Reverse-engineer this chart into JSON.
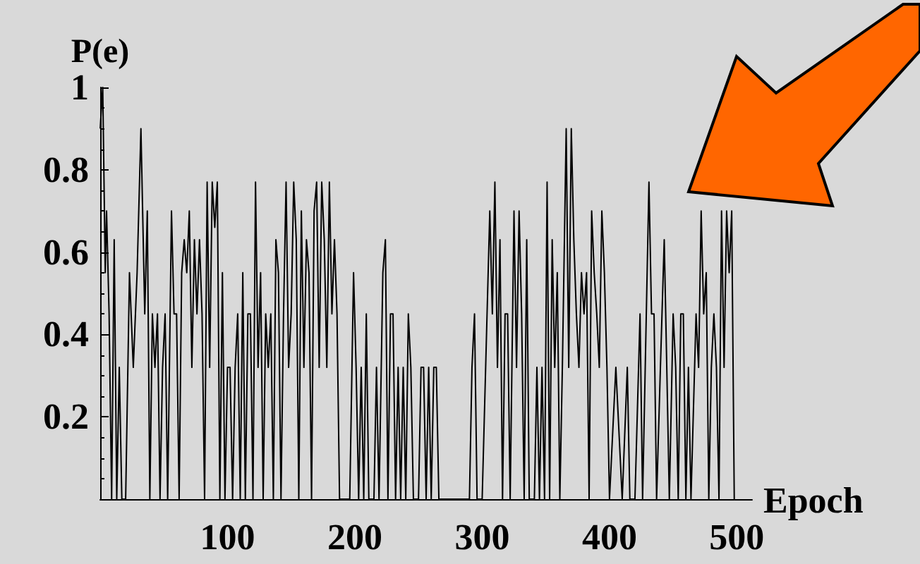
{
  "chart_data": {
    "type": "line",
    "xlabel": "Epoch",
    "ylabel": "P(e)",
    "xlim": [
      0,
      512
    ],
    "ylim": [
      0,
      1
    ],
    "xticks": [
      100,
      200,
      300,
      400,
      500
    ],
    "yticks": [
      0.2,
      0.4,
      0.6,
      0.8,
      1
    ],
    "grid": false,
    "marker": "none",
    "line_style": "solid",
    "series": [
      {
        "color": "#000000",
        "x": [
          0,
          2,
          4,
          5,
          7,
          9,
          11,
          13,
          15,
          17,
          20,
          23,
          26,
          29,
          32,
          35,
          37,
          39,
          41,
          43,
          45,
          47,
          49,
          51,
          53,
          56,
          58,
          60,
          62,
          64,
          66,
          68,
          70,
          72,
          74,
          76,
          78,
          80,
          82,
          84,
          86,
          88,
          90,
          92,
          94,
          96,
          98,
          100,
          102,
          104,
          106,
          108,
          110,
          112,
          114,
          116,
          118,
          120,
          122,
          124,
          126,
          128,
          130,
          132,
          134,
          136,
          138,
          140,
          142,
          144,
          146,
          148,
          150,
          152,
          154,
          156,
          158,
          160,
          162,
          164,
          166,
          168,
          170,
          172,
          174,
          176,
          178,
          180,
          182,
          184,
          186,
          188,
          192,
          196,
          199,
          201,
          203,
          205,
          207,
          209,
          211,
          215,
          217,
          219,
          222,
          224,
          226,
          228,
          230,
          232,
          234,
          236,
          238,
          240,
          242,
          244,
          246,
          250,
          252,
          254,
          256,
          258,
          260,
          262,
          264,
          266,
          290,
          292,
          294,
          296,
          300,
          306,
          308,
          310,
          312,
          314,
          316,
          318,
          320,
          322,
          325,
          327,
          329,
          331,
          333,
          335,
          337,
          341,
          343,
          345,
          347,
          349,
          351,
          353,
          355,
          357,
          359,
          361,
          363,
          366,
          368,
          370,
          372,
          374,
          376,
          378,
          380,
          382,
          384,
          386,
          388,
          390,
          392,
          394,
          396,
          398,
          400,
          405,
          410,
          414,
          416,
          420,
          424,
          426,
          431,
          433,
          435,
          437,
          440,
          443,
          445,
          447,
          450,
          452,
          454,
          456,
          458,
          460,
          462,
          464,
          468,
          470,
          472,
          474,
          476,
          478,
          480,
          482,
          484,
          486,
          488,
          490,
          492,
          494,
          496,
          498
        ],
        "values": [
          0.9,
          1,
          0.55,
          0.7,
          0.45,
          0,
          0.63,
          0,
          0.32,
          0,
          0,
          0.55,
          0.32,
          0.55,
          0.9,
          0.45,
          0.7,
          0,
          0.45,
          0.32,
          0.45,
          0,
          0.32,
          0.45,
          0,
          0.7,
          0.45,
          0.45,
          0,
          0.55,
          0.63,
          0.55,
          0.7,
          0.32,
          0.63,
          0.45,
          0.63,
          0.45,
          0,
          0.77,
          0.32,
          0.77,
          0.66,
          0.77,
          0,
          0.55,
          0,
          0.32,
          0.32,
          0,
          0.32,
          0.45,
          0,
          0.55,
          0,
          0.45,
          0.45,
          0,
          0.77,
          0.32,
          0.55,
          0,
          0.45,
          0.32,
          0.45,
          0,
          0.63,
          0.55,
          0,
          0.45,
          0.77,
          0.32,
          0.45,
          0.77,
          0.63,
          0,
          0.7,
          0.32,
          0.63,
          0.55,
          0,
          0.7,
          0.77,
          0.32,
          0.77,
          0.63,
          0.32,
          0.77,
          0.45,
          0.63,
          0.45,
          0,
          0,
          0,
          0.55,
          0.32,
          0,
          0.32,
          0,
          0.45,
          0,
          0,
          0.32,
          0,
          0.55,
          0.63,
          0,
          0.45,
          0.45,
          0,
          0.32,
          0,
          0.32,
          0,
          0.45,
          0.32,
          0,
          0,
          0.32,
          0.32,
          0,
          0.32,
          0,
          0.32,
          0.32,
          0,
          0,
          0.32,
          0.45,
          0,
          0,
          0.7,
          0.45,
          0.77,
          0.32,
          0.63,
          0,
          0.45,
          0.45,
          0,
          0.7,
          0.32,
          0.7,
          0.45,
          0,
          0.63,
          0,
          0,
          0.32,
          0,
          0.32,
          0,
          0.77,
          0,
          0.63,
          0.32,
          0.55,
          0,
          0.32,
          0.9,
          0.32,
          0.9,
          0.63,
          0.45,
          0.32,
          0.55,
          0.45,
          0.55,
          0,
          0.7,
          0.55,
          0.45,
          0.32,
          0.7,
          0.55,
          0.32,
          0,
          0.32,
          0,
          0.32,
          0,
          0,
          0.45,
          0,
          0.77,
          0.45,
          0.45,
          0,
          0.32,
          0.63,
          0.32,
          0,
          0.45,
          0.32,
          0,
          0.45,
          0.45,
          0,
          0.32,
          0,
          0.45,
          0.32,
          0.7,
          0.45,
          0.55,
          0,
          0.32,
          0.45,
          0.32,
          0,
          0.7,
          0.32,
          0.7,
          0.55,
          0.7,
          0
        ]
      }
    ]
  }
}
